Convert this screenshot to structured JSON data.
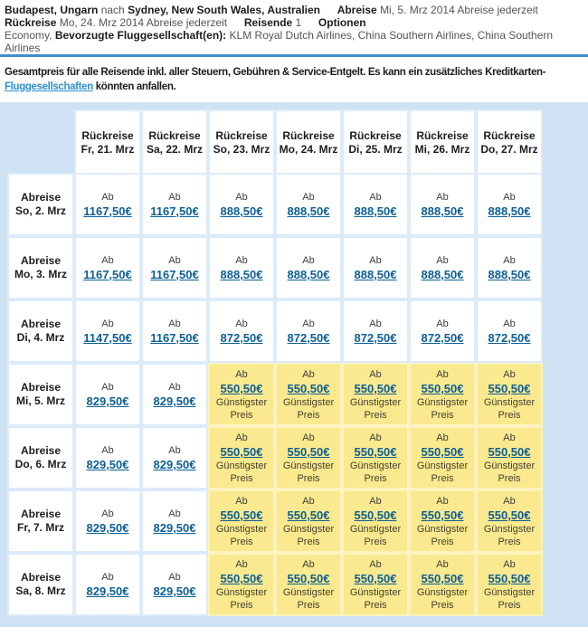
{
  "header": {
    "origin": "Budapest, Ungarn",
    "nach": "nach",
    "destination": "Sydney, New South Wales, Australien",
    "abreise_label": "Abreise",
    "abreise_value": "Mi, 5. Mrz 2014 Abreise jederzeit",
    "rueckreise_label": "Rückreise",
    "rueckreise_value": "Mo, 24. Mrz 2014 Abreise jederzeit",
    "reisende_label": "Reisende",
    "reisende_value": "1",
    "optionen_label": "Optionen",
    "cabin": "Economy,",
    "airlines_label": "Bevorzugte Fluggesellschaft(en):",
    "airlines_value": "KLM Royal Dutch Airlines, China Southern Airlines, China Southern Airlines"
  },
  "notice": {
    "line1": "Gesamtpreis für alle Reisende inkl. aller Steuern, Gebühren & Service-Entgelt. Es kann ein zusätzliches Kreditkarten-",
    "link": "Fluggesellschaften",
    "line2_rest": " könnten anfallen."
  },
  "matrix": {
    "ab_label": "Ab",
    "cheapest_label": "Günstigster Preis",
    "columns": [
      {
        "label": "Rückreise",
        "date": "Fr, 21. Mrz"
      },
      {
        "label": "Rückreise",
        "date": "Sa, 22. Mrz"
      },
      {
        "label": "Rückreise",
        "date": "So, 23. Mrz"
      },
      {
        "label": "Rückreise",
        "date": "Mo, 24. Mrz"
      },
      {
        "label": "Rückreise",
        "date": "Di, 25. Mrz"
      },
      {
        "label": "Rückreise",
        "date": "Mi, 26. Mrz"
      },
      {
        "label": "Rückreise",
        "date": "Do, 27. Mrz"
      }
    ],
    "rows": [
      {
        "label": "Abreise",
        "date": "So, 2. Mrz",
        "cells": [
          {
            "price": "1167,50€",
            "cheapest": false
          },
          {
            "price": "1167,50€",
            "cheapest": false
          },
          {
            "price": "888,50€",
            "cheapest": false
          },
          {
            "price": "888,50€",
            "cheapest": false
          },
          {
            "price": "888,50€",
            "cheapest": false
          },
          {
            "price": "888,50€",
            "cheapest": false
          },
          {
            "price": "888,50€",
            "cheapest": false
          }
        ]
      },
      {
        "label": "Abreise",
        "date": "Mo, 3. Mrz",
        "cells": [
          {
            "price": "1167,50€",
            "cheapest": false
          },
          {
            "price": "1167,50€",
            "cheapest": false
          },
          {
            "price": "888,50€",
            "cheapest": false
          },
          {
            "price": "888,50€",
            "cheapest": false
          },
          {
            "price": "888,50€",
            "cheapest": false
          },
          {
            "price": "888,50€",
            "cheapest": false
          },
          {
            "price": "888,50€",
            "cheapest": false
          }
        ]
      },
      {
        "label": "Abreise",
        "date": "Di, 4. Mrz",
        "cells": [
          {
            "price": "1147,50€",
            "cheapest": false
          },
          {
            "price": "1167,50€",
            "cheapest": false
          },
          {
            "price": "872,50€",
            "cheapest": false
          },
          {
            "price": "872,50€",
            "cheapest": false
          },
          {
            "price": "872,50€",
            "cheapest": false
          },
          {
            "price": "872,50€",
            "cheapest": false
          },
          {
            "price": "872,50€",
            "cheapest": false
          }
        ]
      },
      {
        "label": "Abreise",
        "date": "Mi, 5. Mrz",
        "cells": [
          {
            "price": "829,50€",
            "cheapest": false
          },
          {
            "price": "829,50€",
            "cheapest": false
          },
          {
            "price": "550,50€",
            "cheapest": true
          },
          {
            "price": "550,50€",
            "cheapest": true
          },
          {
            "price": "550,50€",
            "cheapest": true
          },
          {
            "price": "550,50€",
            "cheapest": true
          },
          {
            "price": "550,50€",
            "cheapest": true
          }
        ]
      },
      {
        "label": "Abreise",
        "date": "Do, 6. Mrz",
        "cells": [
          {
            "price": "829,50€",
            "cheapest": false
          },
          {
            "price": "829,50€",
            "cheapest": false
          },
          {
            "price": "550,50€",
            "cheapest": true
          },
          {
            "price": "550,50€",
            "cheapest": true
          },
          {
            "price": "550,50€",
            "cheapest": true
          },
          {
            "price": "550,50€",
            "cheapest": true
          },
          {
            "price": "550,50€",
            "cheapest": true
          }
        ]
      },
      {
        "label": "Abreise",
        "date": "Fr, 7. Mrz",
        "cells": [
          {
            "price": "829,50€",
            "cheapest": false
          },
          {
            "price": "829,50€",
            "cheapest": false
          },
          {
            "price": "550,50€",
            "cheapest": true
          },
          {
            "price": "550,50€",
            "cheapest": true
          },
          {
            "price": "550,50€",
            "cheapest": true
          },
          {
            "price": "550,50€",
            "cheapest": true
          },
          {
            "price": "550,50€",
            "cheapest": true
          }
        ]
      },
      {
        "label": "Abreise",
        "date": "Sa, 8. Mrz",
        "cells": [
          {
            "price": "829,50€",
            "cheapest": false
          },
          {
            "price": "829,50€",
            "cheapest": false
          },
          {
            "price": "550,50€",
            "cheapest": true
          },
          {
            "price": "550,50€",
            "cheapest": true
          },
          {
            "price": "550,50€",
            "cheapest": true
          },
          {
            "price": "550,50€",
            "cheapest": true
          },
          {
            "price": "550,50€",
            "cheapest": true
          }
        ]
      }
    ]
  },
  "colors": {
    "table_background": "#cfe2f3",
    "cell_gap": "#dcebfa",
    "cheapest_cell": "#fae98e",
    "cheapest_gap": "#fdf3c0",
    "divider_rule": "#3f8ecb",
    "price_link": "#0d5f95",
    "notice_link": "#2e8fd4"
  }
}
